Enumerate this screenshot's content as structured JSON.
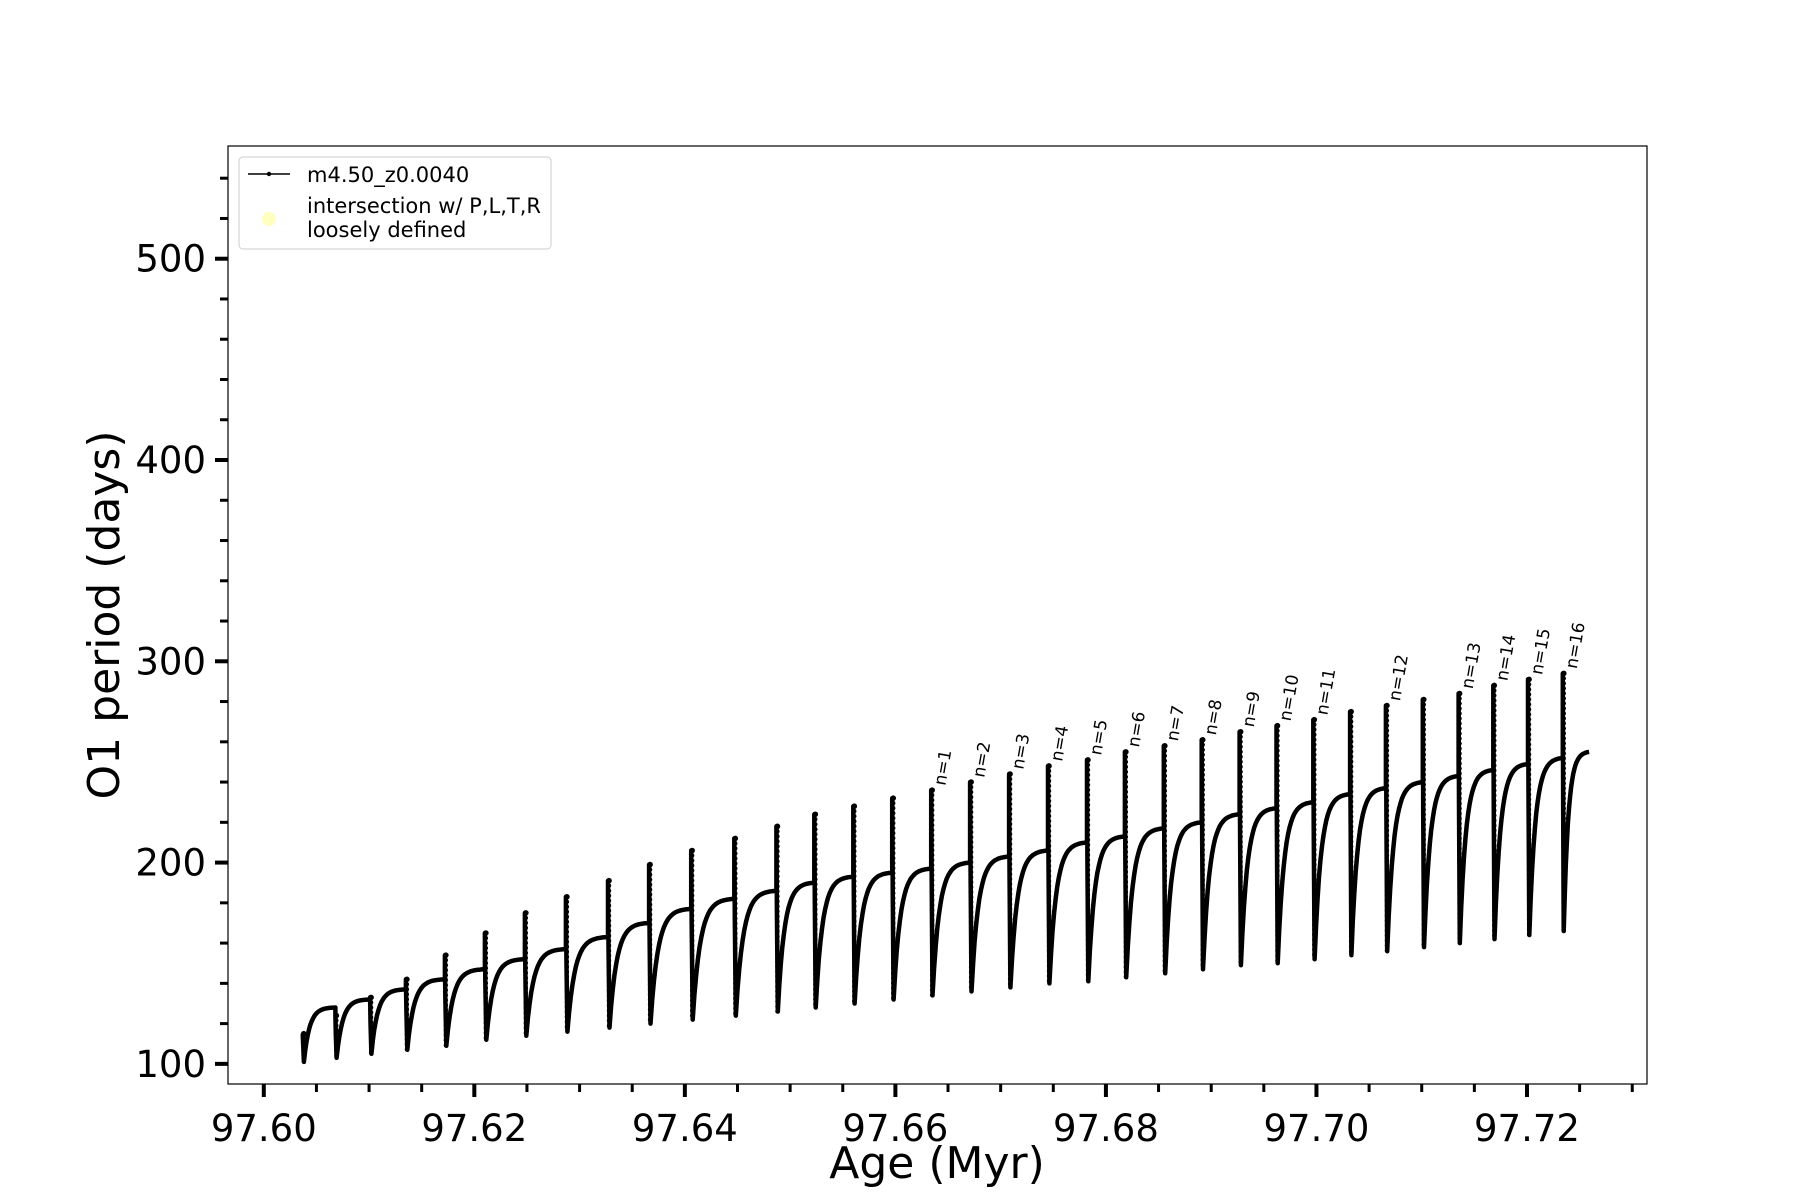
{
  "chart_data": {
    "type": "line",
    "title": "",
    "xlabel": "Age (Myr)",
    "ylabel": "O1 period (days)",
    "xlim": [
      97.5966,
      97.7314
    ],
    "ylim": [
      90,
      556
    ],
    "xticks": [
      97.6,
      97.62,
      97.64,
      97.66,
      97.68,
      97.7,
      97.72
    ],
    "xtick_labels": [
      "97.60",
      "97.62",
      "97.64",
      "97.66",
      "97.68",
      "97.70",
      "97.72"
    ],
    "yticks": [
      100,
      200,
      300,
      400,
      500
    ],
    "ytick_labels": [
      "100",
      "200",
      "300",
      "400",
      "500"
    ],
    "x_minor_step": 0.005,
    "y_minor_step": 20,
    "legend": {
      "placement": "upper-left",
      "entries": [
        {
          "label": "m4.50_z0.0040",
          "marker": "line-dot",
          "color": "#000000"
        },
        {
          "label": "intersection w/ P,L,T,R\nloosely defined",
          "marker": "circle",
          "color": "#ffffc0"
        }
      ]
    },
    "series": [
      {
        "name": "m4.50_z0.0040",
        "color": "#000000",
        "pulse_cycles": [
          {
            "start": 97.6037,
            "base": 101,
            "plateau": 128,
            "spike": 115
          },
          {
            "start": 97.6068,
            "base": 103,
            "plateau": 132,
            "spike": 124
          },
          {
            "start": 97.6101,
            "base": 105,
            "plateau": 137,
            "spike": 133
          },
          {
            "start": 97.6135,
            "base": 107,
            "plateau": 142,
            "spike": 142
          },
          {
            "start": 97.6172,
            "base": 109,
            "plateau": 147,
            "spike": 154
          },
          {
            "start": 97.621,
            "base": 112,
            "plateau": 152,
            "spike": 165
          },
          {
            "start": 97.6248,
            "base": 114,
            "plateau": 157,
            "spike": 175
          },
          {
            "start": 97.6287,
            "base": 116,
            "plateau": 163,
            "spike": 183
          },
          {
            "start": 97.6327,
            "base": 118,
            "plateau": 170,
            "spike": 191
          },
          {
            "start": 97.6366,
            "base": 120,
            "plateau": 177,
            "spike": 199
          },
          {
            "start": 97.6406,
            "base": 122,
            "plateau": 182,
            "spike": 206
          },
          {
            "start": 97.6447,
            "base": 124,
            "plateau": 186,
            "spike": 212
          },
          {
            "start": 97.6487,
            "base": 126,
            "plateau": 190,
            "spike": 218
          },
          {
            "start": 97.6523,
            "base": 128,
            "plateau": 193,
            "spike": 224
          },
          {
            "start": 97.656,
            "base": 130,
            "plateau": 195,
            "spike": 228
          },
          {
            "start": 97.6597,
            "base": 132,
            "plateau": 197,
            "spike": 232
          },
          {
            "start": 97.6634,
            "base": 134,
            "plateau": 200,
            "spike": 236
          },
          {
            "start": 97.6671,
            "base": 136,
            "plateau": 203,
            "spike": 240
          },
          {
            "start": 97.6708,
            "base": 138,
            "plateau": 206,
            "spike": 244
          },
          {
            "start": 97.6745,
            "base": 140,
            "plateau": 210,
            "spike": 248
          },
          {
            "start": 97.6782,
            "base": 141,
            "plateau": 213,
            "spike": 251
          },
          {
            "start": 97.6818,
            "base": 143,
            "plateau": 217,
            "spike": 255
          },
          {
            "start": 97.6855,
            "base": 145,
            "plateau": 220,
            "spike": 258
          },
          {
            "start": 97.6891,
            "base": 147,
            "plateau": 224,
            "spike": 261
          },
          {
            "start": 97.6927,
            "base": 149,
            "plateau": 227,
            "spike": 265
          },
          {
            "start": 97.6962,
            "base": 150,
            "plateau": 230,
            "spike": 268
          },
          {
            "start": 97.6997,
            "base": 152,
            "plateau": 234,
            "spike": 271
          },
          {
            "start": 97.7032,
            "base": 154,
            "plateau": 237,
            "spike": 275
          },
          {
            "start": 97.7066,
            "base": 156,
            "plateau": 240,
            "spike": 278
          },
          {
            "start": 97.7101,
            "base": 158,
            "plateau": 243,
            "spike": 281
          },
          {
            "start": 97.7135,
            "base": 160,
            "plateau": 246,
            "spike": 284
          },
          {
            "start": 97.7168,
            "base": 162,
            "plateau": 249,
            "spike": 288
          },
          {
            "start": 97.7201,
            "base": 164,
            "plateau": 252,
            "spike": 291
          },
          {
            "start": 97.7234,
            "base": 166,
            "plateau": 255,
            "spike": 294
          }
        ],
        "end": 97.7259
      }
    ],
    "annotations": [
      {
        "text": "n=1",
        "x": 97.6634,
        "y": 236
      },
      {
        "text": "n=2",
        "x": 97.6671,
        "y": 240
      },
      {
        "text": "n=3",
        "x": 97.6708,
        "y": 244
      },
      {
        "text": "n=4",
        "x": 97.6745,
        "y": 248
      },
      {
        "text": "n=5",
        "x": 97.6782,
        "y": 251
      },
      {
        "text": "n=6",
        "x": 97.6818,
        "y": 255
      },
      {
        "text": "n=7",
        "x": 97.6855,
        "y": 258
      },
      {
        "text": "n=8",
        "x": 97.6891,
        "y": 261
      },
      {
        "text": "n=9",
        "x": 97.6927,
        "y": 265
      },
      {
        "text": "n=10",
        "x": 97.6962,
        "y": 268
      },
      {
        "text": "n=11",
        "x": 97.6997,
        "y": 271
      },
      {
        "text": "n=12",
        "x": 97.7066,
        "y": 278
      },
      {
        "text": "n=13",
        "x": 97.7135,
        "y": 284
      },
      {
        "text": "n=14",
        "x": 97.7168,
        "y": 288
      },
      {
        "text": "n=15",
        "x": 97.7201,
        "y": 291
      },
      {
        "text": "n=16",
        "x": 97.7234,
        "y": 294
      }
    ]
  }
}
